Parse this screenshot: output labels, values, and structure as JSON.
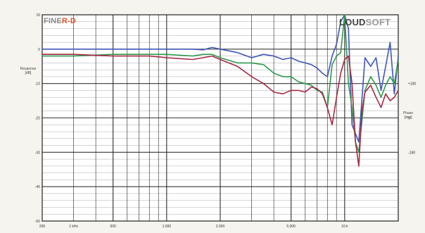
{
  "brand": {
    "left_part1": "FINE",
    "left_part2": "R-D",
    "right_part1": "LOUD",
    "right_part2": "SOFT"
  },
  "colors": {
    "blue": "#3f56b8",
    "green": "#2f9a4c",
    "red": "#a52a45",
    "grid": "#222222",
    "plot_bg": "#ffffff"
  },
  "chart_data": {
    "type": "line",
    "x_scale": "log",
    "xlim": [
      200,
      20000
    ],
    "ylim_left": [
      -50,
      10
    ],
    "ylim_right": [
      -180,
      180
    ],
    "grid": true,
    "ylabel_left": "Response\n[dB]",
    "ylabel_right": "Phase\n[deg]",
    "y_left_ticks": [
      "10",
      "0",
      "-10",
      "-20",
      "-30",
      "-40",
      "-50"
    ],
    "y_right_ticks": [
      "+180",
      "0",
      "-180"
    ],
    "x_ticks": [
      "200",
      "1 kHz",
      "500",
      "1.000",
      "2.000",
      "5.000",
      "10 k"
    ],
    "series": [
      {
        "color_key": "blue",
        "x": [
          200,
          300,
          500,
          800,
          1000,
          1400,
          1600,
          1800,
          2000,
          2500,
          3000,
          3500,
          4000,
          4500,
          5000,
          5500,
          6000,
          6500,
          7000,
          7500,
          8000,
          8500,
          9000,
          9500,
          10000,
          10500,
          11000,
          12000,
          13000,
          14000,
          15000,
          16000,
          17000,
          18000,
          19000,
          20000
        ],
        "y": [
          0,
          0,
          0,
          0,
          0,
          0,
          -0.2,
          0.5,
          0,
          -1,
          -2.5,
          -1.5,
          -2,
          -3,
          -2.5,
          -3.5,
          -4,
          -4.5,
          -5.5,
          -7,
          -8,
          -2,
          1.5,
          8,
          10,
          6,
          -22,
          -27,
          -2.5,
          -5,
          -2.5,
          -12,
          -5,
          2,
          -13,
          -2
        ]
      },
      {
        "color_key": "green",
        "x": [
          200,
          300,
          500,
          800,
          1000,
          1400,
          1600,
          1800,
          2000,
          2500,
          3000,
          3500,
          4000,
          4500,
          5000,
          5500,
          6000,
          6500,
          7000,
          7500,
          8000,
          8500,
          9000,
          9500,
          10000,
          10500,
          11000,
          11500,
          12000,
          13000,
          14000,
          15000,
          16000,
          17000,
          18000,
          19000,
          20000
        ],
        "y": [
          -2,
          -2,
          -1.5,
          -1.5,
          -1.5,
          -2,
          -1.5,
          -1.5,
          -2.5,
          -4,
          -4,
          -4.5,
          -7,
          -8,
          -8,
          -9.5,
          -10,
          -10.5,
          -12,
          -12.5,
          -17,
          -4.5,
          -2,
          -1,
          10,
          -10,
          -17,
          -27,
          -30,
          -12,
          -8,
          -10.5,
          -14,
          -10.5,
          -8,
          -10,
          -3
        ]
      },
      {
        "color_key": "red",
        "x": [
          200,
          300,
          500,
          800,
          1000,
          1400,
          1600,
          1800,
          2000,
          2500,
          3000,
          3500,
          4000,
          4500,
          5000,
          5500,
          6000,
          6500,
          7000,
          7500,
          8000,
          8500,
          9000,
          9500,
          10000,
          10500,
          11000,
          11500,
          12000,
          12500,
          13000,
          14000,
          15000,
          16000,
          17000,
          18000,
          19000,
          20000
        ],
        "y": [
          -1.5,
          -1.5,
          -2,
          -2,
          -2.5,
          -3,
          -2.5,
          -2,
          -3,
          -5,
          -8,
          -10,
          -12.5,
          -13,
          -12,
          -12,
          -12.5,
          -11,
          -11.5,
          -13,
          -17,
          -22,
          -14,
          -7,
          -3,
          -2,
          -10,
          -27,
          -34,
          -18,
          -12.5,
          -10.5,
          -14,
          -17,
          -13,
          -15,
          -14,
          -12
        ]
      }
    ]
  }
}
